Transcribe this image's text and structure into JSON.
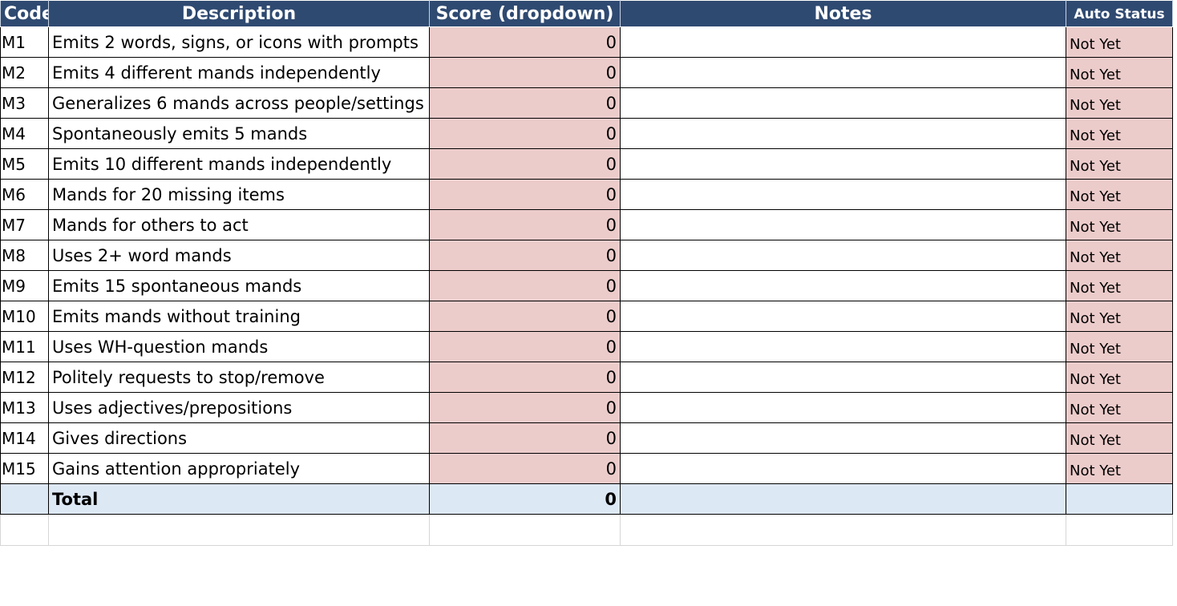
{
  "header": {
    "columns": [
      "Code",
      "Description",
      "Score (dropdown)",
      "Notes",
      "Auto Status"
    ]
  },
  "rows": [
    {
      "code": "M1",
      "description": "Emits 2 words, signs, or icons with prompts",
      "score": 0,
      "status": "Not Yet"
    },
    {
      "code": "M2",
      "description": "Emits 4 different mands independently",
      "score": 0,
      "status": "Not Yet"
    },
    {
      "code": "M3",
      "description": "Generalizes 6 mands across people/settings",
      "score": 0,
      "status": "Not Yet"
    },
    {
      "code": "M4",
      "description": "Spontaneously emits 5 mands",
      "score": 0,
      "status": "Not Yet"
    },
    {
      "code": "M5",
      "description": "Emits 10 different mands independently",
      "score": 0,
      "status": "Not Yet"
    },
    {
      "code": "M6",
      "description": "Mands for 20 missing items",
      "score": 0,
      "status": "Not Yet"
    },
    {
      "code": "M7",
      "description": "Mands for others to act",
      "score": 0,
      "status": "Not Yet"
    },
    {
      "code": "M8",
      "description": "Uses 2+ word mands",
      "score": 0,
      "status": "Not Yet"
    },
    {
      "code": "M9",
      "description": "Emits 15 spontaneous mands",
      "score": 0,
      "status": "Not Yet"
    },
    {
      "code": "M10",
      "description": "Emits mands without training",
      "score": 0,
      "status": "Not Yet"
    },
    {
      "code": "M11",
      "description": "Uses WH-question mands",
      "score": 0,
      "status": "Not Yet"
    },
    {
      "code": "M12",
      "description": "Politely requests to stop/remove",
      "score": 0,
      "status": "Not Yet"
    },
    {
      "code": "M13",
      "description": "Uses adjectives/prepositions",
      "score": 0,
      "status": "Not Yet"
    },
    {
      "code": "M14",
      "description": "Gives directions",
      "score": 0,
      "status": "Not Yet"
    },
    {
      "code": "M15",
      "description": "Gains attention appropriately",
      "score": 0,
      "status": "Not Yet"
    }
  ],
  "total": {
    "label": "Total",
    "score": 0
  }
}
